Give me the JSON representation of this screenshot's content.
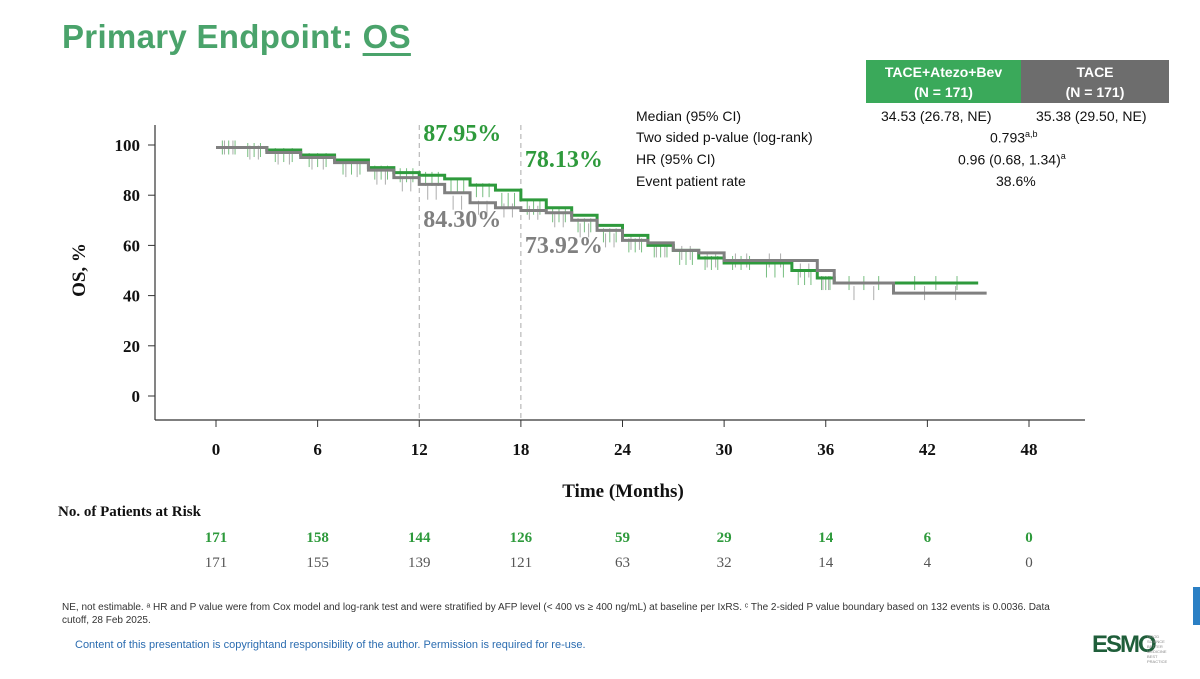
{
  "title": {
    "prefix": "Primary Endpoint: ",
    "emph": "OS"
  },
  "table": {
    "arm1_name": "TACE+Atezo+Bev",
    "arm1_n": "(N = 171)",
    "arm2_name": "TACE",
    "arm2_n": "(N = 171)",
    "rows": [
      {
        "label": "Median (95% CI)",
        "arm1": "34.53 (26.78, NE)",
        "arm2": "35.38 (29.50, NE)"
      },
      {
        "label": "Two sided p-value (log-rank)",
        "value": "0.793",
        "sup": "a,b"
      },
      {
        "label": "HR (95% CI)",
        "value": "0.96 (0.68, 1.34)",
        "sup": "a"
      },
      {
        "label": "Event patient rate",
        "value": "38.6%"
      }
    ]
  },
  "colors": {
    "arm1": "#2e9a3c",
    "arm2": "#808080",
    "title": "#4aa36b"
  },
  "chart_data": {
    "type": "line",
    "title": "",
    "xlabel": "Time (Months)",
    "ylabel": "OS, %",
    "xlim": [
      0,
      48
    ],
    "ylim": [
      0,
      100
    ],
    "xticks": [
      0,
      6,
      12,
      18,
      24,
      30,
      36,
      42,
      48
    ],
    "yticks": [
      0,
      20,
      40,
      60,
      80,
      100
    ],
    "reference_lines_x": [
      12,
      18
    ],
    "series": [
      {
        "name": "TACE+Atezo+Bev",
        "x": [
          0,
          1.5,
          3,
          5,
          7,
          9,
          10.5,
          12,
          13.5,
          15,
          16.5,
          18,
          19.5,
          21,
          22.5,
          24,
          25.5,
          27,
          28.5,
          30,
          32,
          34,
          35.5,
          36.5,
          40,
          45
        ],
        "y": [
          99,
          99,
          98,
          96,
          94,
          91,
          89,
          87.95,
          86.5,
          84,
          82,
          78.13,
          75,
          72,
          68,
          64,
          60,
          58,
          55,
          53,
          53,
          50,
          47,
          45,
          45,
          45
        ]
      },
      {
        "name": "TACE",
        "x": [
          0,
          1.5,
          3,
          5,
          7,
          9,
          10.5,
          12,
          13.5,
          15,
          16.5,
          18,
          19.5,
          21,
          22.5,
          24,
          25.5,
          27,
          28.5,
          30,
          32,
          34,
          35.5,
          36.5,
          40,
          45.5
        ],
        "y": [
          99,
          99,
          97,
          95,
          93,
          90,
          87,
          84.3,
          81,
          77,
          75,
          73.92,
          73,
          70,
          66,
          62,
          61,
          58,
          57,
          54,
          54,
          54,
          50,
          45,
          41,
          41
        ]
      }
    ],
    "annotations": [
      {
        "x": 12,
        "arm": "TACE+Atezo+Bev",
        "text": "87.95%"
      },
      {
        "x": 18,
        "arm": "TACE+Atezo+Bev",
        "text": "78.13%"
      },
      {
        "x": 12,
        "arm": "TACE",
        "text": "84.30%"
      },
      {
        "x": 18,
        "arm": "TACE",
        "text": "73.92%"
      }
    ],
    "at_risk": {
      "heading": "No. of Patients at Risk",
      "times": [
        0,
        6,
        12,
        18,
        24,
        30,
        36,
        42,
        48
      ],
      "arm1": [
        "171",
        "158",
        "144",
        "126",
        "59",
        "29",
        "14",
        "6",
        "0"
      ],
      "arm2": [
        "171",
        "155",
        "139",
        "121",
        "63",
        "32",
        "14",
        "4",
        "0"
      ]
    }
  },
  "footnote": "NE, not estimable. ᵃ HR and P value were from Cox model and log-rank test and were stratified by AFP level (< 400 vs ≥ 400 ng/mL) at baseline per IxRS. ᶜ The 2-sided P value boundary based on 132 events is 0.0036. Data cutoff, 28 Feb 2025.",
  "copyright": "Content of this presentation is copyrightand responsibility of the author. Permission is required for re-use.",
  "logo": "ESMO",
  "logo_tag": "GOOD SCIENCE BETTER MEDICINE BEST PRACTICE"
}
